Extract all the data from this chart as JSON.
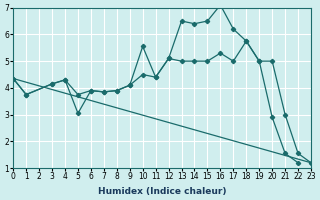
{
  "xlabel": "Humidex (Indice chaleur)",
  "ylabel": "",
  "bg_color": "#d0eeee",
  "grid_color": "#ffffff",
  "line_color": "#1a6b6b",
  "xlim": [
    0,
    23
  ],
  "ylim": [
    1,
    7
  ],
  "xticks": [
    0,
    1,
    2,
    3,
    4,
    5,
    6,
    7,
    8,
    9,
    10,
    11,
    12,
    13,
    14,
    15,
    16,
    17,
    18,
    19,
    20,
    21,
    22,
    23
  ],
  "yticks": [
    1,
    2,
    3,
    4,
    5,
    6,
    7
  ],
  "series": [
    {
      "x": [
        0,
        1,
        3,
        4,
        5,
        6,
        7,
        8,
        9,
        10,
        11,
        12,
        13,
        14,
        15,
        16,
        17,
        18,
        19,
        20,
        21,
        22,
        23
      ],
      "y": [
        4.35,
        3.75,
        4.15,
        4.3,
        3.05,
        3.9,
        3.85,
        3.9,
        4.1,
        5.55,
        4.4,
        5.1,
        6.5,
        6.4,
        6.5,
        7.1,
        6.2,
        5.75,
        5.0,
        2.9,
        1.55,
        1.2,
        null
      ]
    },
    {
      "x": [
        0,
        1,
        3,
        4,
        5,
        6,
        7,
        8,
        9,
        10,
        11,
        12,
        13,
        14,
        15,
        16,
        17,
        18,
        19,
        20,
        21,
        22,
        23
      ],
      "y": [
        4.35,
        3.75,
        4.15,
        4.3,
        3.75,
        3.9,
        3.85,
        3.9,
        4.1,
        4.5,
        4.4,
        5.1,
        5.0,
        5.0,
        5.0,
        5.3,
        5.0,
        5.75,
        5.0,
        5.0,
        3.0,
        1.55,
        1.2
      ]
    },
    {
      "x": [
        0,
        23
      ],
      "y": [
        4.35,
        1.2
      ]
    }
  ]
}
